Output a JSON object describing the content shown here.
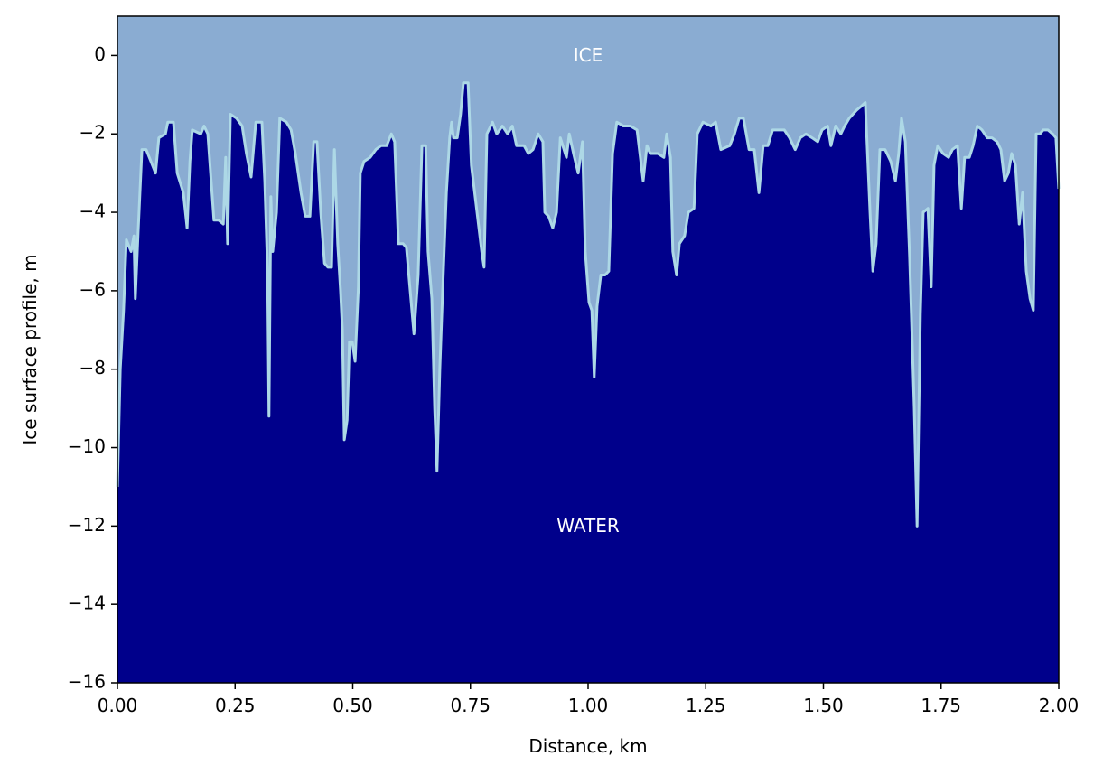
{
  "chart_data": {
    "type": "area",
    "xlabel": "Distance, km",
    "ylabel": "Ice surface profile, m",
    "annotations": [
      {
        "text": "ICE",
        "x": 1.0,
        "y": 0
      },
      {
        "text": "WATER",
        "x": 1.0,
        "y": -12
      }
    ],
    "line_color": "#add8e6",
    "fill_color": "#00008b",
    "background_color": "#8aacd2",
    "xlim": [
      0,
      2
    ],
    "ylim": [
      -16,
      1
    ],
    "xticks": [
      {
        "value": 0,
        "label": "0.00"
      },
      {
        "value": 0.25,
        "label": "0.25"
      },
      {
        "value": 0.5,
        "label": "0.50"
      },
      {
        "value": 0.75,
        "label": "0.75"
      },
      {
        "value": 1,
        "label": "1.00"
      },
      {
        "value": 1.25,
        "label": "1.25"
      },
      {
        "value": 1.5,
        "label": "1.50"
      },
      {
        "value": 1.75,
        "label": "1.75"
      },
      {
        "value": 2,
        "label": "2.00"
      }
    ],
    "yticks": [
      {
        "value": -16,
        "label": "−16"
      },
      {
        "value": -14,
        "label": "−14"
      },
      {
        "value": -12,
        "label": "−12"
      },
      {
        "value": -10,
        "label": "−10"
      },
      {
        "value": -8,
        "label": "−8"
      },
      {
        "value": -6,
        "label": "−6"
      },
      {
        "value": -4,
        "label": "−4"
      },
      {
        "value": -2,
        "label": "−2"
      },
      0
    ],
    "x": [
      0,
      0.006,
      0.013,
      0.019,
      0.029,
      0.035,
      0.038,
      0.044,
      0.052,
      0.061,
      0.071,
      0.081,
      0.088,
      0.102,
      0.107,
      0.119,
      0.127,
      0.14,
      0.148,
      0.154,
      0.159,
      0.177,
      0.184,
      0.192,
      0.205,
      0.215,
      0.225,
      0.23,
      0.234,
      0.24,
      0.253,
      0.265,
      0.274,
      0.284,
      0.294,
      0.307,
      0.313,
      0.319,
      0.322,
      0.326,
      0.33,
      0.338,
      0.345,
      0.359,
      0.369,
      0.378,
      0.39,
      0.399,
      0.409,
      0.417,
      0.424,
      0.432,
      0.44,
      0.447,
      0.455,
      0.461,
      0.468,
      0.474,
      0.478,
      0.482,
      0.488,
      0.493,
      0.499,
      0.505,
      0.512,
      0.516,
      0.524,
      0.537,
      0.549,
      0.56,
      0.572,
      0.582,
      0.589,
      0.597,
      0.607,
      0.614,
      0.622,
      0.63,
      0.639,
      0.647,
      0.655,
      0.66,
      0.668,
      0.674,
      0.679,
      0.685,
      0.691,
      0.699,
      0.706,
      0.71,
      0.714,
      0.722,
      0.729,
      0.735,
      0.745,
      0.752,
      0.764,
      0.774,
      0.779,
      0.785,
      0.797,
      0.806,
      0.818,
      0.829,
      0.839,
      0.848,
      0.864,
      0.873,
      0.883,
      0.894,
      0.904,
      0.908,
      0.916,
      0.925,
      0.933,
      0.941,
      0.954,
      0.96,
      0.969,
      0.979,
      0.988,
      0.994,
      1.002,
      1.008,
      1.013,
      1.019,
      1.027,
      1.036,
      1.044,
      1.052,
      1.061,
      1.075,
      1.09,
      1.104,
      1.117,
      1.125,
      1.132,
      1.148,
      1.161,
      1.167,
      1.175,
      1.18,
      1.188,
      1.194,
      1.205,
      1.213,
      1.225,
      1.232,
      1.244,
      1.261,
      1.271,
      1.282,
      1.301,
      1.311,
      1.321,
      1.33,
      1.342,
      1.353,
      1.363,
      1.372,
      1.382,
      1.392,
      1.405,
      1.417,
      1.428,
      1.44,
      1.451,
      1.463,
      1.476,
      1.488,
      1.497,
      1.509,
      1.516,
      1.526,
      1.537,
      1.545,
      1.555,
      1.57,
      1.58,
      1.589,
      1.599,
      1.605,
      1.612,
      1.62,
      1.631,
      1.643,
      1.653,
      1.66,
      1.666,
      1.674,
      1.683,
      1.693,
      1.699,
      1.706,
      1.712,
      1.722,
      1.729,
      1.735,
      1.743,
      1.754,
      1.766,
      1.774,
      1.785,
      1.793,
      1.8,
      1.81,
      1.818,
      1.827,
      1.837,
      1.848,
      1.858,
      1.869,
      1.877,
      1.885,
      1.893,
      1.9,
      1.908,
      1.916,
      1.923,
      1.931,
      1.939,
      1.946,
      1.952,
      1.96,
      1.967,
      1.977,
      1.987,
      1.994,
      2.0
    ],
    "values": [
      -11,
      -8,
      -6.5,
      -4.7,
      -5.0,
      -4.6,
      -6.2,
      -4.5,
      -2.4,
      -2.4,
      -2.7,
      -3.0,
      -2.1,
      -2.0,
      -1.7,
      -1.7,
      -3.0,
      -3.5,
      -4.4,
      -2.7,
      -1.9,
      -2.0,
      -1.8,
      -2.0,
      -4.2,
      -4.2,
      -4.3,
      -2.6,
      -4.8,
      -1.5,
      -1.6,
      -1.8,
      -2.5,
      -3.1,
      -1.7,
      -1.7,
      -3.2,
      -5.5,
      -9.2,
      -3.6,
      -5.0,
      -4.0,
      -1.6,
      -1.7,
      -1.9,
      -2.5,
      -3.5,
      -4.1,
      -4.1,
      -2.2,
      -2.2,
      -4.0,
      -5.3,
      -5.4,
      -5.4,
      -2.4,
      -4.8,
      -6.0,
      -7.0,
      -9.8,
      -9.3,
      -7.3,
      -7.3,
      -7.8,
      -5.9,
      -3.0,
      -2.7,
      -2.6,
      -2.4,
      -2.3,
      -2.3,
      -2.0,
      -2.2,
      -4.8,
      -4.8,
      -4.9,
      -6.0,
      -7.1,
      -5.6,
      -2.3,
      -2.3,
      -5.0,
      -6.2,
      -9.0,
      -10.6,
      -8.0,
      -6.0,
      -3.5,
      -2.1,
      -1.7,
      -2.1,
      -2.1,
      -1.5,
      -0.7,
      -0.7,
      -2.8,
      -4.0,
      -5.0,
      -5.4,
      -2.0,
      -1.7,
      -2.0,
      -1.8,
      -2.0,
      -1.8,
      -2.3,
      -2.3,
      -2.5,
      -2.4,
      -2.0,
      -2.2,
      -4.0,
      -4.1,
      -4.4,
      -4.0,
      -2.1,
      -2.6,
      -2.0,
      -2.5,
      -3.0,
      -2.2,
      -5.0,
      -6.3,
      -6.5,
      -8.2,
      -6.4,
      -5.6,
      -5.6,
      -5.5,
      -2.5,
      -1.7,
      -1.8,
      -1.8,
      -1.9,
      -3.2,
      -2.3,
      -2.5,
      -2.5,
      -2.6,
      -2.0,
      -2.6,
      -5.0,
      -5.6,
      -4.8,
      -4.6,
      -4.0,
      -3.9,
      -2.0,
      -1.7,
      -1.8,
      -1.7,
      -2.4,
      -2.3,
      -2.0,
      -1.6,
      -1.6,
      -2.4,
      -2.4,
      -3.5,
      -2.3,
      -2.3,
      -1.9,
      -1.9,
      -1.9,
      -2.1,
      -2.4,
      -2.1,
      -2.0,
      -2.1,
      -2.2,
      -1.9,
      -1.8,
      -2.3,
      -1.8,
      -2.0,
      -1.8,
      -1.6,
      -1.4,
      -1.3,
      -1.2,
      -4.0,
      -5.5,
      -4.8,
      -2.4,
      -2.4,
      -2.7,
      -3.2,
      -2.5,
      -1.6,
      -2.2,
      -5.1,
      -9.0,
      -12.0,
      -6.6,
      -4.0,
      -3.9,
      -5.9,
      -2.8,
      -2.3,
      -2.5,
      -2.6,
      -2.4,
      -2.3,
      -3.9,
      -2.6,
      -2.6,
      -2.3,
      -1.8,
      -1.9,
      -2.1,
      -2.1,
      -2.2,
      -2.4,
      -3.2,
      -3.0,
      -2.5,
      -2.8,
      -4.3,
      -3.5,
      -5.5,
      -6.2,
      -6.5,
      -2.0,
      -2.0,
      -1.9,
      -1.9,
      -2.0,
      -2.1,
      -3.4
    ]
  }
}
